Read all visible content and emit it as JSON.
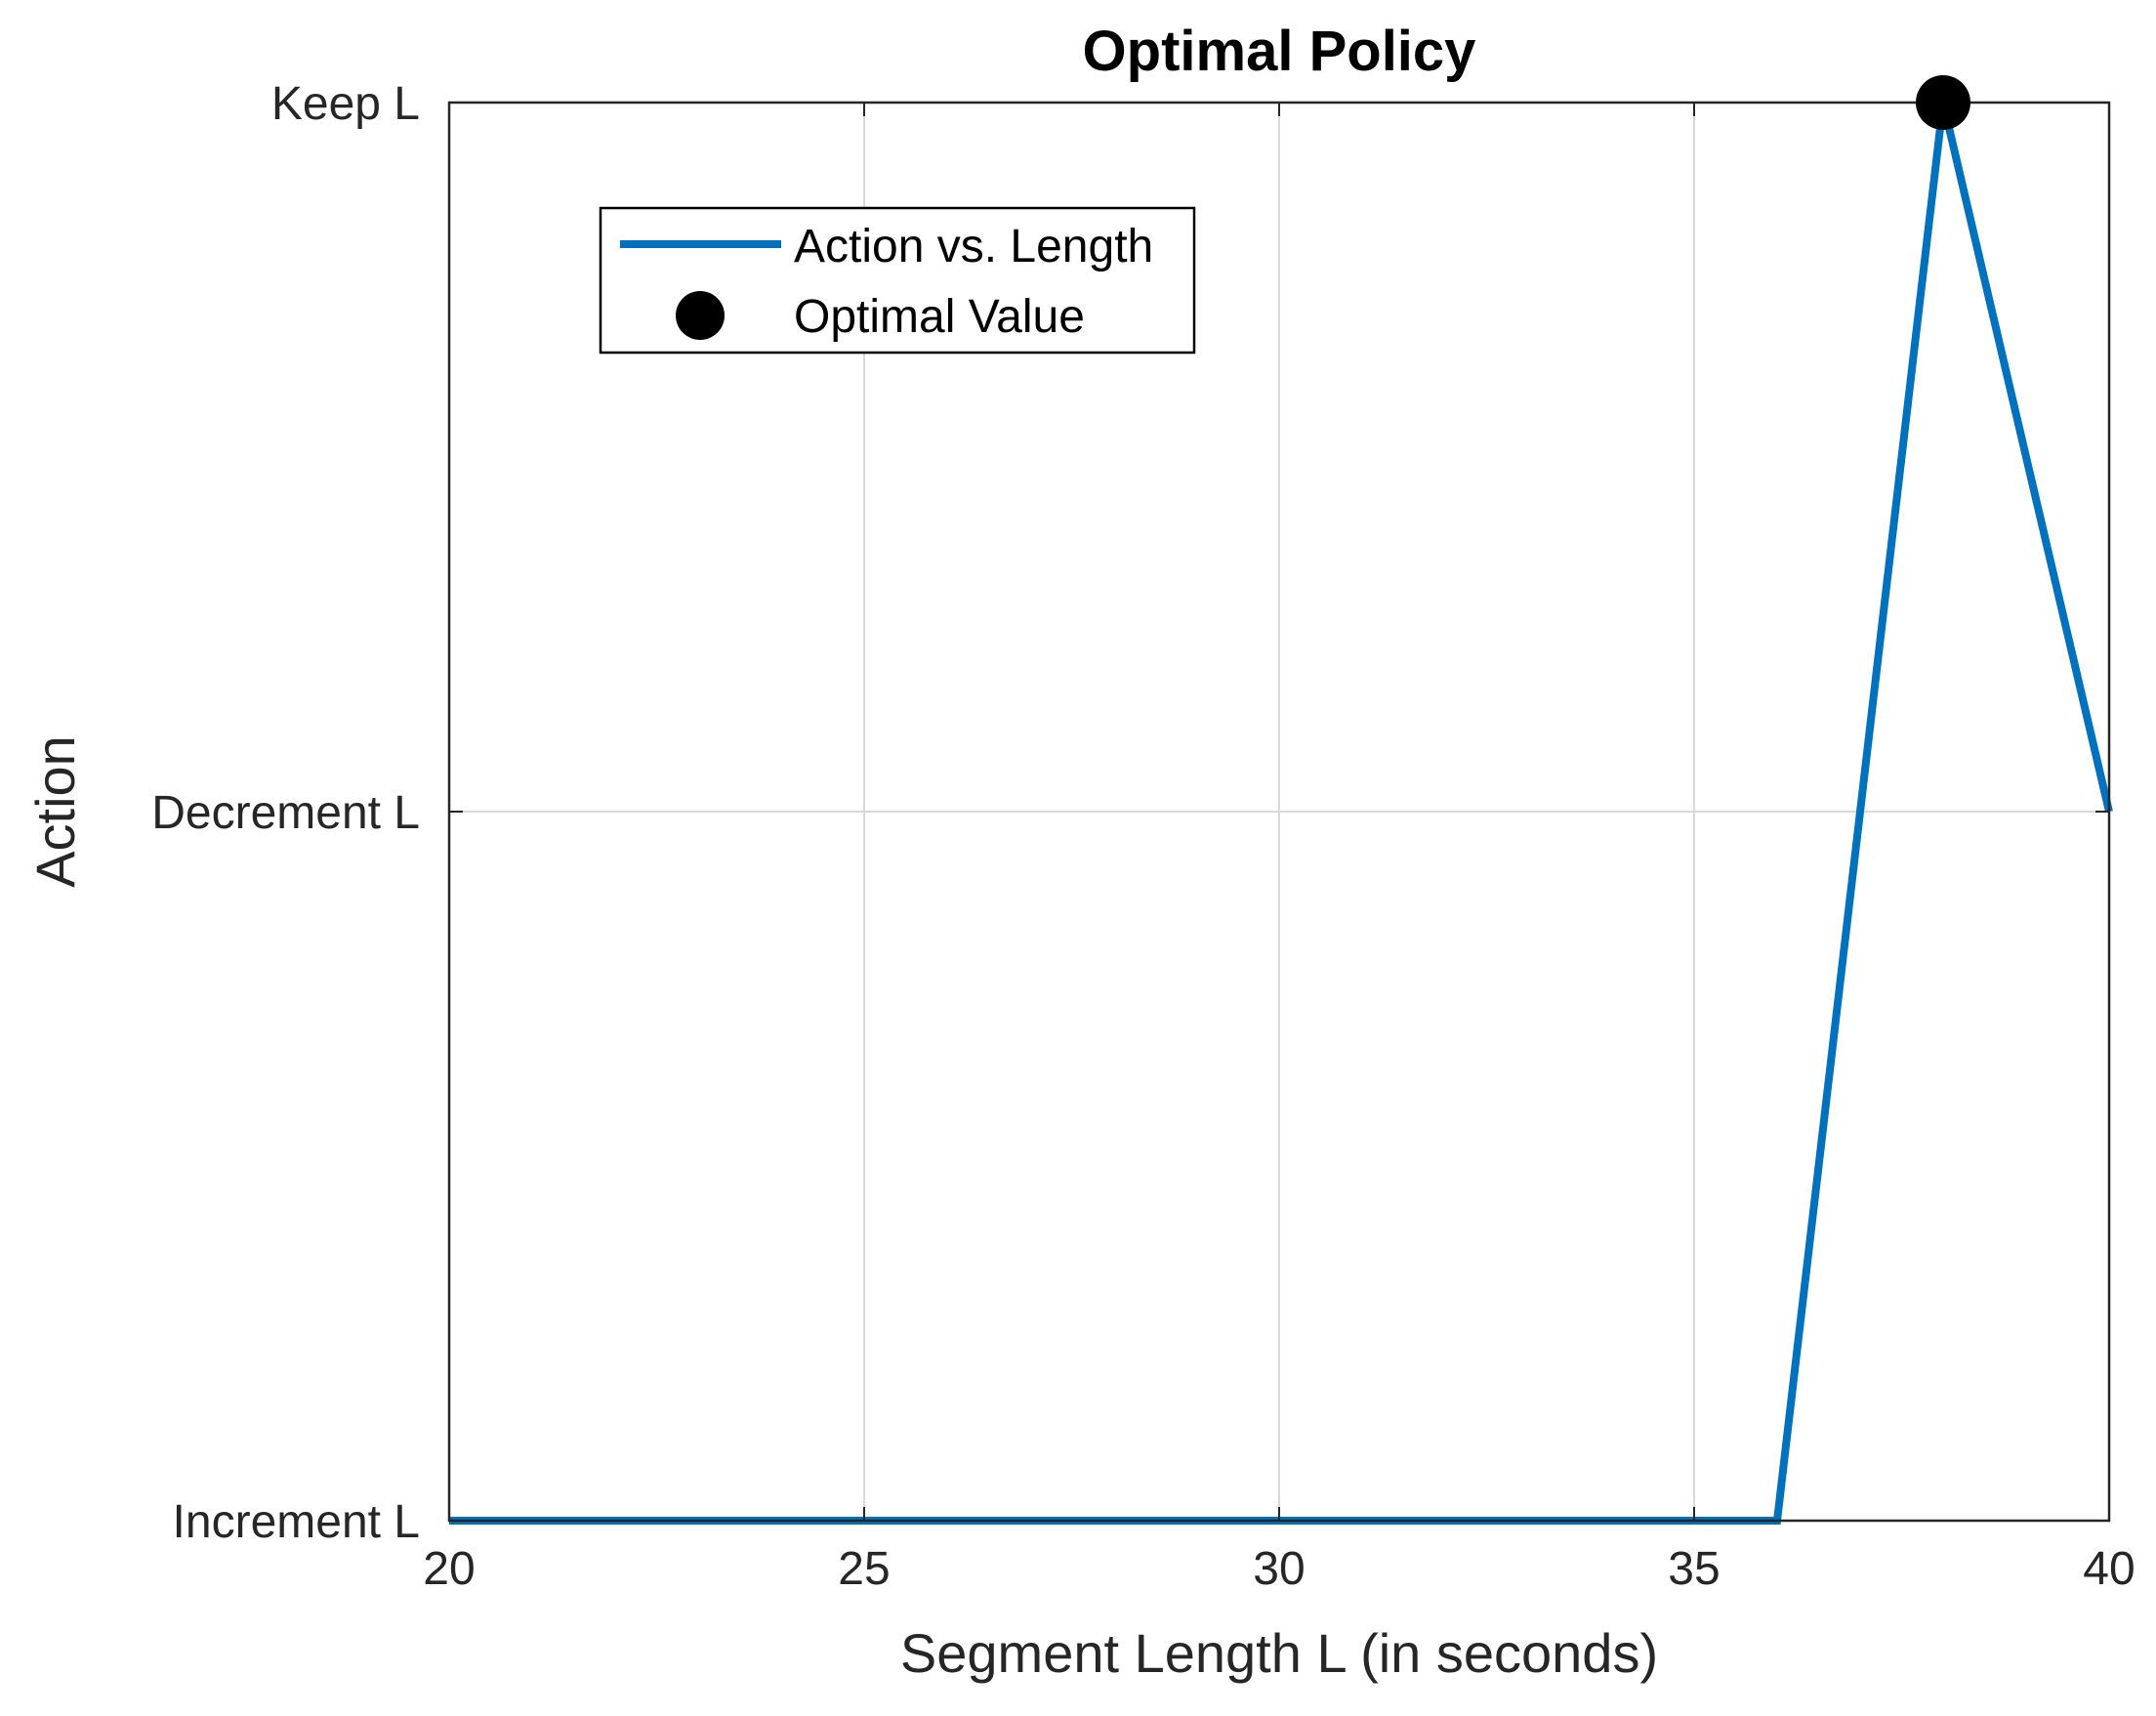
{
  "colors": {
    "series": "#0072BD",
    "marker": "#000000",
    "grid": "#d9d9d9",
    "axes": "#262626",
    "background": "#ffffff"
  },
  "chart_data": {
    "type": "line",
    "title": "Optimal Policy",
    "xlabel": "Segment Length L (in seconds)",
    "ylabel": "Action",
    "xlim": [
      20,
      40
    ],
    "ylim": [
      0,
      2
    ],
    "xticks": [
      20,
      25,
      30,
      35,
      40
    ],
    "xtick_labels": [
      "20",
      "25",
      "30",
      "35",
      "40"
    ],
    "yticks": [
      0,
      1,
      2
    ],
    "ytick_labels": [
      "Increment L",
      "Decrement L",
      "Keep L"
    ],
    "grid": true,
    "legend_position": "top-left",
    "series": [
      {
        "name": "Action vs. Length",
        "style": "line",
        "x": [
          20,
          21,
          22,
          23,
          24,
          25,
          26,
          27,
          28,
          29,
          30,
          31,
          32,
          33,
          34,
          35,
          36,
          37,
          38,
          39,
          40
        ],
        "y": [
          0,
          0,
          0,
          0,
          0,
          0,
          0,
          0,
          0,
          0,
          0,
          0,
          0,
          0,
          0,
          0,
          0,
          1,
          2,
          1.5,
          1
        ]
      },
      {
        "name": "Optimal Value",
        "style": "marker",
        "x": [
          38
        ],
        "y": [
          2
        ]
      }
    ]
  }
}
